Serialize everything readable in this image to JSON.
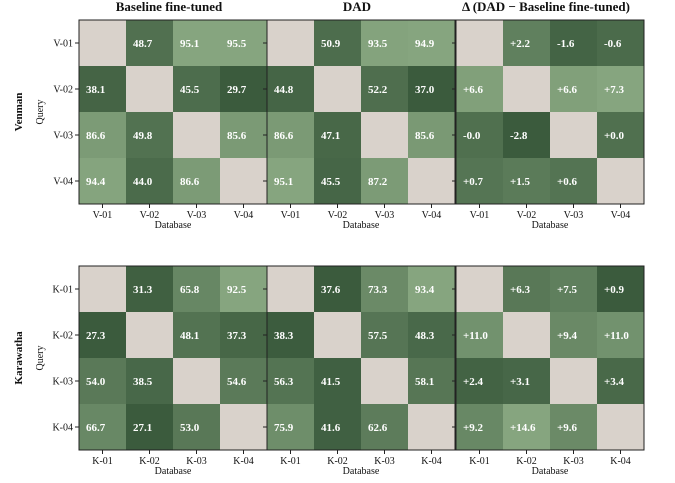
{
  "chart_data": {
    "type": "heatmap",
    "titles": [
      "Baseline fine-tuned",
      "DAD",
      "Δ (DAD − Baseline fine-tuned)"
    ],
    "xlabel": "Database",
    "ylabel": "Query",
    "colors": {
      "diagonal": "#d9d2cb",
      "cell_low": "#3b5b3d",
      "cell_high": "#86a57f",
      "cell_text": "#ffffff"
    },
    "groups": [
      {
        "name": "Venman",
        "labels": [
          "V-01",
          "V-02",
          "V-03",
          "V-04"
        ],
        "matrices": [
          [
            [
              null,
              48.7,
              95.1,
              95.5
            ],
            [
              38.1,
              null,
              45.5,
              29.7
            ],
            [
              86.6,
              49.8,
              null,
              85.6
            ],
            [
              94.4,
              44.0,
              86.6,
              null
            ]
          ],
          [
            [
              null,
              50.9,
              93.5,
              94.9
            ],
            [
              44.8,
              null,
              52.2,
              37.0
            ],
            [
              86.6,
              47.1,
              null,
              85.6
            ],
            [
              95.1,
              45.5,
              87.2,
              null
            ]
          ],
          [
            [
              null,
              2.2,
              -1.6,
              -0.6
            ],
            [
              6.6,
              null,
              6.6,
              7.3
            ],
            [
              -0.0,
              -2.8,
              null,
              0.0
            ],
            [
              0.7,
              1.5,
              0.6,
              null
            ]
          ]
        ],
        "cell_text": [
          [
            [
              "",
              "48.7",
              "95.1",
              "95.5"
            ],
            [
              "38.1",
              "",
              "45.5",
              "29.7"
            ],
            [
              "86.6",
              "49.8",
              "",
              "85.6"
            ],
            [
              "94.4",
              "44.0",
              "86.6",
              ""
            ]
          ],
          [
            [
              "",
              "50.9",
              "93.5",
              "94.9"
            ],
            [
              "44.8",
              "",
              "52.2",
              "37.0"
            ],
            [
              "86.6",
              "47.1",
              "",
              "85.6"
            ],
            [
              "95.1",
              "45.5",
              "87.2",
              ""
            ]
          ],
          [
            [
              "",
              "+2.2",
              "-1.6",
              "-0.6"
            ],
            [
              "+6.6",
              "",
              "+6.6",
              "+7.3"
            ],
            [
              "-0.0",
              "-2.8",
              "",
              "+0.0"
            ],
            [
              "+0.7",
              "+1.5",
              "+0.6",
              ""
            ]
          ]
        ]
      },
      {
        "name": "Karawatha",
        "labels": [
          "K-01",
          "K-02",
          "K-03",
          "K-04"
        ],
        "matrices": [
          [
            [
              null,
              31.3,
              65.8,
              92.5
            ],
            [
              27.3,
              null,
              48.1,
              37.3
            ],
            [
              54.0,
              38.5,
              null,
              54.6
            ],
            [
              66.7,
              27.1,
              53.0,
              null
            ]
          ],
          [
            [
              null,
              37.6,
              73.3,
              93.4
            ],
            [
              38.3,
              null,
              57.5,
              48.3
            ],
            [
              56.3,
              41.5,
              null,
              58.1
            ],
            [
              75.9,
              41.6,
              62.6,
              null
            ]
          ],
          [
            [
              null,
              6.3,
              7.5,
              0.9
            ],
            [
              11.0,
              null,
              9.4,
              11.0
            ],
            [
              2.4,
              3.1,
              null,
              3.4
            ],
            [
              9.2,
              14.6,
              9.6,
              null
            ]
          ]
        ],
        "cell_text": [
          [
            [
              "",
              "31.3",
              "65.8",
              "92.5"
            ],
            [
              "27.3",
              "",
              "48.1",
              "37.3"
            ],
            [
              "54.0",
              "38.5",
              "",
              "54.6"
            ],
            [
              "66.7",
              "27.1",
              "53.0",
              ""
            ]
          ],
          [
            [
              "",
              "37.6",
              "73.3",
              "93.4"
            ],
            [
              "38.3",
              "",
              "57.5",
              "48.3"
            ],
            [
              "56.3",
              "41.5",
              "",
              "58.1"
            ],
            [
              "75.9",
              "41.6",
              "62.6",
              ""
            ]
          ],
          [
            [
              "",
              "+6.3",
              "+7.5",
              "+0.9"
            ],
            [
              "+11.0",
              "",
              "+9.4",
              "+11.0"
            ],
            [
              "+2.4",
              "+3.1",
              "",
              "+3.4"
            ],
            [
              "+9.2",
              "+14.6",
              "+9.6",
              ""
            ]
          ]
        ]
      }
    ]
  }
}
